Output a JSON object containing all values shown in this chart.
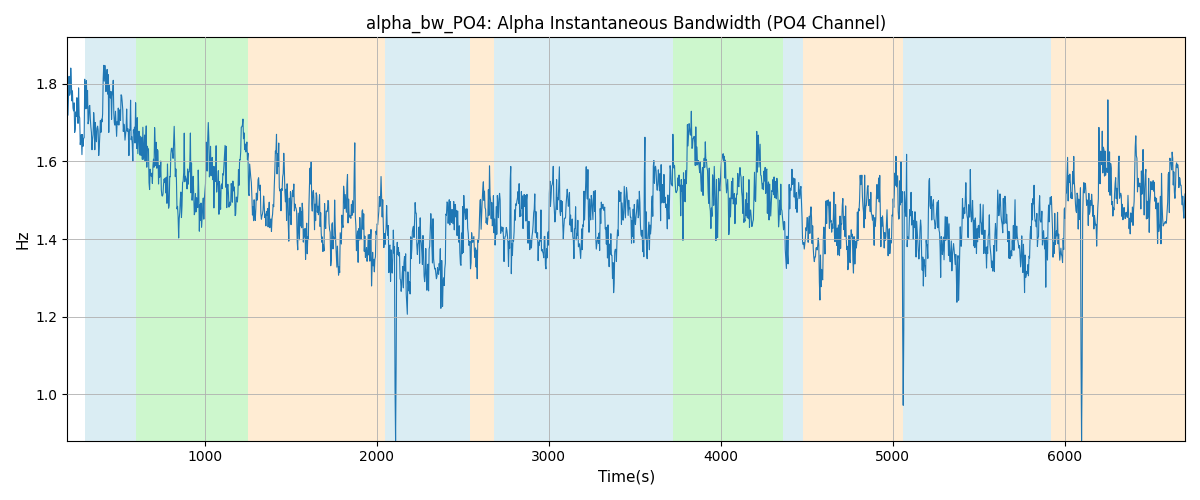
{
  "title": "alpha_bw_PO4: Alpha Instantaneous Bandwidth (PO4 Channel)",
  "xlabel": "Time(s)",
  "ylabel": "Hz",
  "xlim": [
    200,
    6700
  ],
  "ylim": [
    0.88,
    1.92
  ],
  "yticks": [
    1.0,
    1.2,
    1.4,
    1.6,
    1.8
  ],
  "line_color": "#1f77b4",
  "line_width": 0.8,
  "bg_color": "white",
  "grid_color": "#b0b0b0",
  "bands": [
    {
      "start": 300,
      "end": 600,
      "color": "#add8e6",
      "alpha": 0.45
    },
    {
      "start": 600,
      "end": 1250,
      "color": "#90ee90",
      "alpha": 0.45
    },
    {
      "start": 1250,
      "end": 2050,
      "color": "#ffd59e",
      "alpha": 0.45
    },
    {
      "start": 2050,
      "end": 2540,
      "color": "#add8e6",
      "alpha": 0.45
    },
    {
      "start": 2540,
      "end": 2680,
      "color": "#ffd59e",
      "alpha": 0.45
    },
    {
      "start": 2680,
      "end": 3720,
      "color": "#add8e6",
      "alpha": 0.45
    },
    {
      "start": 3720,
      "end": 4360,
      "color": "#90ee90",
      "alpha": 0.45
    },
    {
      "start": 4360,
      "end": 4480,
      "color": "#add8e6",
      "alpha": 0.45
    },
    {
      "start": 4480,
      "end": 5060,
      "color": "#ffd59e",
      "alpha": 0.45
    },
    {
      "start": 5060,
      "end": 5920,
      "color": "#add8e6",
      "alpha": 0.45
    },
    {
      "start": 5920,
      "end": 6700,
      "color": "#ffd59e",
      "alpha": 0.45
    }
  ],
  "seed": 42,
  "n_points": 2000,
  "t_start": 200,
  "t_end": 6700
}
